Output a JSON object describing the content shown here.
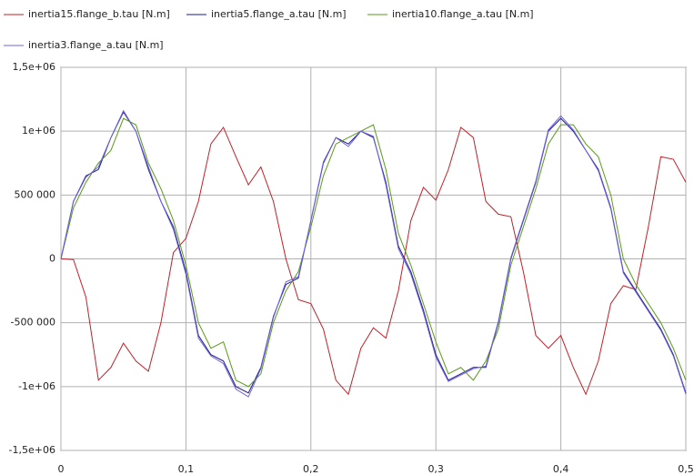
{
  "chart_data": {
    "type": "line",
    "x": [
      0,
      0.01,
      0.02,
      0.03,
      0.04,
      0.05,
      0.06,
      0.07,
      0.08,
      0.09,
      0.1,
      0.11,
      0.12,
      0.13,
      0.14,
      0.15,
      0.16,
      0.17,
      0.18,
      0.19,
      0.2,
      0.21,
      0.22,
      0.23,
      0.24,
      0.25,
      0.26,
      0.27,
      0.28,
      0.29,
      0.3,
      0.31,
      0.32,
      0.33,
      0.34,
      0.35,
      0.36,
      0.37,
      0.38,
      0.39,
      0.4,
      0.41,
      0.42,
      0.43,
      0.44,
      0.45,
      0.46,
      0.47,
      0.48,
      0.49,
      0.5
    ],
    "series": [
      {
        "name": "inertia15.flange_b.tau [N.m]",
        "color": "#c0202a",
        "values": [
          0,
          -5000,
          -300000,
          -950000,
          -850000,
          -660000,
          -800000,
          -880000,
          -500000,
          50000,
          160000,
          450000,
          900000,
          1030000,
          800000,
          580000,
          720000,
          450000,
          0,
          -320000,
          -350000,
          -550000,
          -950000,
          -1060000,
          -700000,
          -540000,
          -620000,
          -250000,
          300000,
          560000,
          460000,
          700000,
          1030000,
          950000,
          450000,
          350000,
          330000,
          -100000,
          -600000,
          -700000,
          -600000,
          -850000,
          -1060000,
          -800000,
          -350000,
          -210000,
          -240000,
          250000,
          800000,
          780000,
          600000
        ]
      },
      {
        "name": "inertia5.flange_a.tau [N.m]",
        "color": "#1a1a8c",
        "values": [
          0,
          450000,
          650000,
          700000,
          950000,
          1150000,
          1000000,
          700000,
          450000,
          250000,
          -100000,
          -600000,
          -750000,
          -800000,
          -1000000,
          -1050000,
          -850000,
          -450000,
          -200000,
          -150000,
          300000,
          750000,
          950000,
          900000,
          1000000,
          950000,
          600000,
          100000,
          -100000,
          -400000,
          -750000,
          -950000,
          -900000,
          -850000,
          -850000,
          -500000,
          0,
          300000,
          600000,
          1000000,
          1100000,
          1000000,
          850000,
          700000,
          400000,
          -100000,
          -250000,
          -400000,
          -550000,
          -750000,
          -1050000
        ]
      },
      {
        "name": "inertia10.flange_a.tau [N.m]",
        "color": "#5a9a1a",
        "values": [
          0,
          400000,
          600000,
          750000,
          850000,
          1100000,
          1050000,
          750000,
          550000,
          300000,
          -50000,
          -500000,
          -700000,
          -650000,
          -950000,
          -1000000,
          -900000,
          -500000,
          -250000,
          -100000,
          250000,
          650000,
          900000,
          950000,
          1000000,
          1050000,
          700000,
          200000,
          -50000,
          -350000,
          -650000,
          -900000,
          -850000,
          -950000,
          -800000,
          -550000,
          -50000,
          250000,
          550000,
          900000,
          1050000,
          1050000,
          900000,
          800000,
          500000,
          0,
          -200000,
          -350000,
          -500000,
          -700000,
          -950000
        ]
      },
      {
        "name": "inertia3.flange_a.tau [N.m]",
        "color": "#7060e0",
        "values": [
          0,
          450000,
          640000,
          720000,
          950000,
          1160000,
          1000000,
          720000,
          450000,
          230000,
          -120000,
          -620000,
          -760000,
          -820000,
          -1020000,
          -1080000,
          -860000,
          -460000,
          -180000,
          -140000,
          300000,
          760000,
          950000,
          880000,
          1000000,
          960000,
          580000,
          80000,
          -120000,
          -420000,
          -770000,
          -960000,
          -910000,
          -860000,
          -840000,
          -490000,
          10000,
          310000,
          610000,
          1010000,
          1120000,
          1010000,
          850000,
          690000,
          390000,
          -110000,
          -260000,
          -410000,
          -560000,
          -760000,
          -1060000
        ]
      }
    ],
    "xlim": [
      0,
      0.5
    ],
    "xticks": [
      0,
      {
        "value": 0.1,
        "label": "0,1"
      },
      {
        "value": 0.2,
        "label": "0,2"
      },
      {
        "value": 0.3,
        "label": "0,3"
      },
      {
        "value": 0.4,
        "label": "0,4"
      },
      {
        "value": 0.5,
        "label": "0,5"
      }
    ],
    "ylim": [
      -1500000,
      1500000
    ],
    "yticks": [
      {
        "value": -1500000,
        "label": "-1,5e+06"
      },
      {
        "value": -1000000,
        "label": "-1e+06"
      },
      {
        "value": -500000,
        "label": "-500 000"
      },
      0,
      {
        "value": 500000,
        "label": "500 000"
      },
      {
        "value": 1000000,
        "label": "1e+06"
      },
      {
        "value": 1500000,
        "label": "1,5e+06"
      }
    ],
    "grid": true
  }
}
